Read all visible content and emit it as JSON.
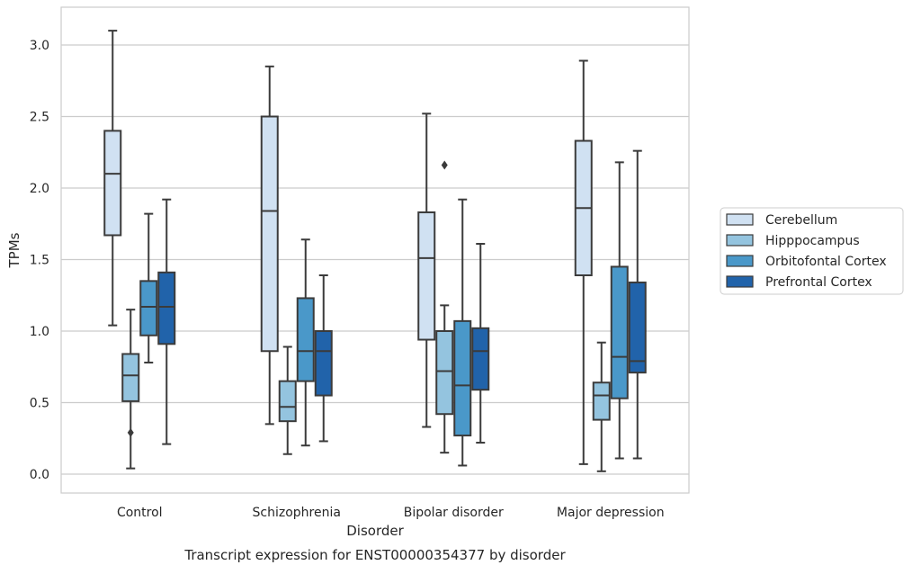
{
  "chart_data": {
    "type": "boxplot",
    "caption": "Transcript expression for ENST00000354377 by disorder",
    "xlabel": "Disorder",
    "ylabel": "TPMs",
    "ylim": [
      -0.13,
      3.25
    ],
    "yticks": [
      0.0,
      0.5,
      1.0,
      1.5,
      2.0,
      2.5,
      3.0
    ],
    "ytick_labels": [
      "0.0",
      "0.5",
      "1.0",
      "1.5",
      "2.0",
      "2.5",
      "3.0"
    ],
    "grid": "horizontal",
    "legend_position": "right",
    "categories": [
      "Control",
      "Schizophrenia",
      "Bipolar disorder",
      "Major depression"
    ],
    "series": [
      {
        "name": "Cerebellum",
        "color": "#d0e1f2",
        "boxes": [
          {
            "min": 1.04,
            "q1": 1.67,
            "median": 2.1,
            "q3": 2.4,
            "max": 3.1,
            "outliers": []
          },
          {
            "min": 0.35,
            "q1": 0.86,
            "median": 1.84,
            "q3": 2.5,
            "max": 2.85,
            "outliers": []
          },
          {
            "min": 0.33,
            "q1": 0.94,
            "median": 1.51,
            "q3": 1.83,
            "max": 2.52,
            "outliers": []
          },
          {
            "min": 0.07,
            "q1": 1.39,
            "median": 1.86,
            "q3": 2.33,
            "max": 2.89,
            "outliers": []
          }
        ]
      },
      {
        "name": "Hipppocampus",
        "color": "#94c4df",
        "boxes": [
          {
            "min": 0.04,
            "q1": 0.51,
            "median": 0.69,
            "q3": 0.84,
            "max": 1.15,
            "outliers": [
              0.29
            ]
          },
          {
            "min": 0.14,
            "q1": 0.37,
            "median": 0.47,
            "q3": 0.65,
            "max": 0.89,
            "outliers": []
          },
          {
            "min": 0.15,
            "q1": 0.42,
            "median": 0.72,
            "q3": 1.0,
            "max": 1.18,
            "outliers": [
              2.16
            ]
          },
          {
            "min": 0.02,
            "q1": 0.38,
            "median": 0.55,
            "q3": 0.64,
            "max": 0.92,
            "outliers": []
          }
        ]
      },
      {
        "name": "Orbitofontal Cortex",
        "color": "#4a98c9",
        "boxes": [
          {
            "min": 0.78,
            "q1": 0.97,
            "median": 1.17,
            "q3": 1.35,
            "max": 1.82,
            "outliers": []
          },
          {
            "min": 0.2,
            "q1": 0.65,
            "median": 0.86,
            "q3": 1.23,
            "max": 1.64,
            "outliers": []
          },
          {
            "min": 0.06,
            "q1": 0.27,
            "median": 0.62,
            "q3": 1.07,
            "max": 1.92,
            "outliers": []
          },
          {
            "min": 0.11,
            "q1": 0.53,
            "median": 0.82,
            "q3": 1.45,
            "max": 2.18,
            "outliers": []
          }
        ]
      },
      {
        "name": "Prefrontal Cortex",
        "color": "#2163aa",
        "boxes": [
          {
            "min": 0.21,
            "q1": 0.91,
            "median": 1.17,
            "q3": 1.41,
            "max": 1.92,
            "outliers": []
          },
          {
            "min": 0.23,
            "q1": 0.55,
            "median": 0.86,
            "q3": 1.0,
            "max": 1.39,
            "outliers": []
          },
          {
            "min": 0.22,
            "q1": 0.59,
            "median": 0.86,
            "q3": 1.02,
            "max": 1.61,
            "outliers": []
          },
          {
            "min": 0.11,
            "q1": 0.71,
            "median": 0.79,
            "q3": 1.34,
            "max": 2.26,
            "outliers": []
          }
        ]
      }
    ]
  }
}
